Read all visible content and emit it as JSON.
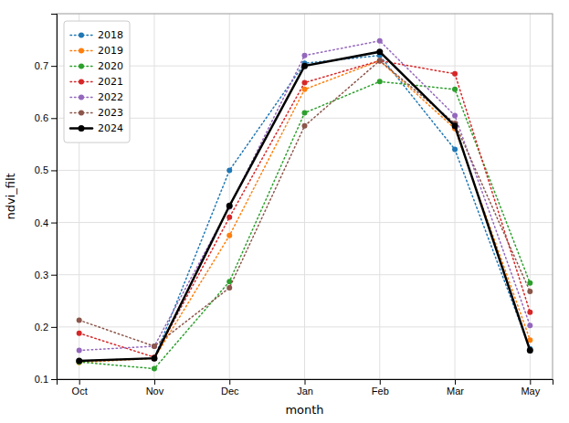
{
  "chart_data": {
    "type": "line",
    "xlabel": "month",
    "ylabel": "ndvi_filt",
    "categories": [
      "Oct",
      "Nov",
      "Dec",
      "Jan",
      "Feb",
      "Mar",
      "May"
    ],
    "series": [
      {
        "name": "2018",
        "color": "#1f77b4",
        "line_style": "dotted",
        "marker": "circle",
        "values": [
          0.135,
          0.14,
          0.5,
          0.705,
          0.72,
          0.54,
          0.158
        ]
      },
      {
        "name": "2019",
        "color": "#ff7f0e",
        "line_style": "dotted",
        "marker": "circle",
        "values": [
          0.132,
          0.14,
          0.375,
          0.655,
          0.71,
          0.58,
          0.175
        ]
      },
      {
        "name": "2020",
        "color": "#2ca02c",
        "line_style": "dotted",
        "marker": "circle",
        "values": [
          0.133,
          0.12,
          0.287,
          0.61,
          0.67,
          0.655,
          0.284
        ]
      },
      {
        "name": "2021",
        "color": "#d62728",
        "line_style": "dotted",
        "marker": "circle",
        "values": [
          0.188,
          0.142,
          0.41,
          0.668,
          0.71,
          0.685,
          0.228
        ]
      },
      {
        "name": "2022",
        "color": "#9467bd",
        "line_style": "dotted",
        "marker": "circle",
        "values": [
          0.155,
          0.163,
          0.43,
          0.72,
          0.748,
          0.605,
          0.203
        ]
      },
      {
        "name": "2023",
        "color": "#8c564b",
        "line_style": "dotted",
        "marker": "circle",
        "values": [
          0.213,
          0.163,
          0.275,
          0.585,
          0.71,
          0.59,
          0.268
        ]
      },
      {
        "name": "2024",
        "color": "#000000",
        "line_style": "solid",
        "marker": "circle",
        "values": [
          0.135,
          0.14,
          0.432,
          0.7,
          0.727,
          0.585,
          0.155
        ]
      }
    ],
    "ylim": [
      0.1,
      0.8
    ],
    "yticks": [
      0.1,
      0.2,
      0.3,
      0.4,
      0.5,
      0.6,
      0.7
    ],
    "grid": true,
    "legend": "upper left"
  }
}
